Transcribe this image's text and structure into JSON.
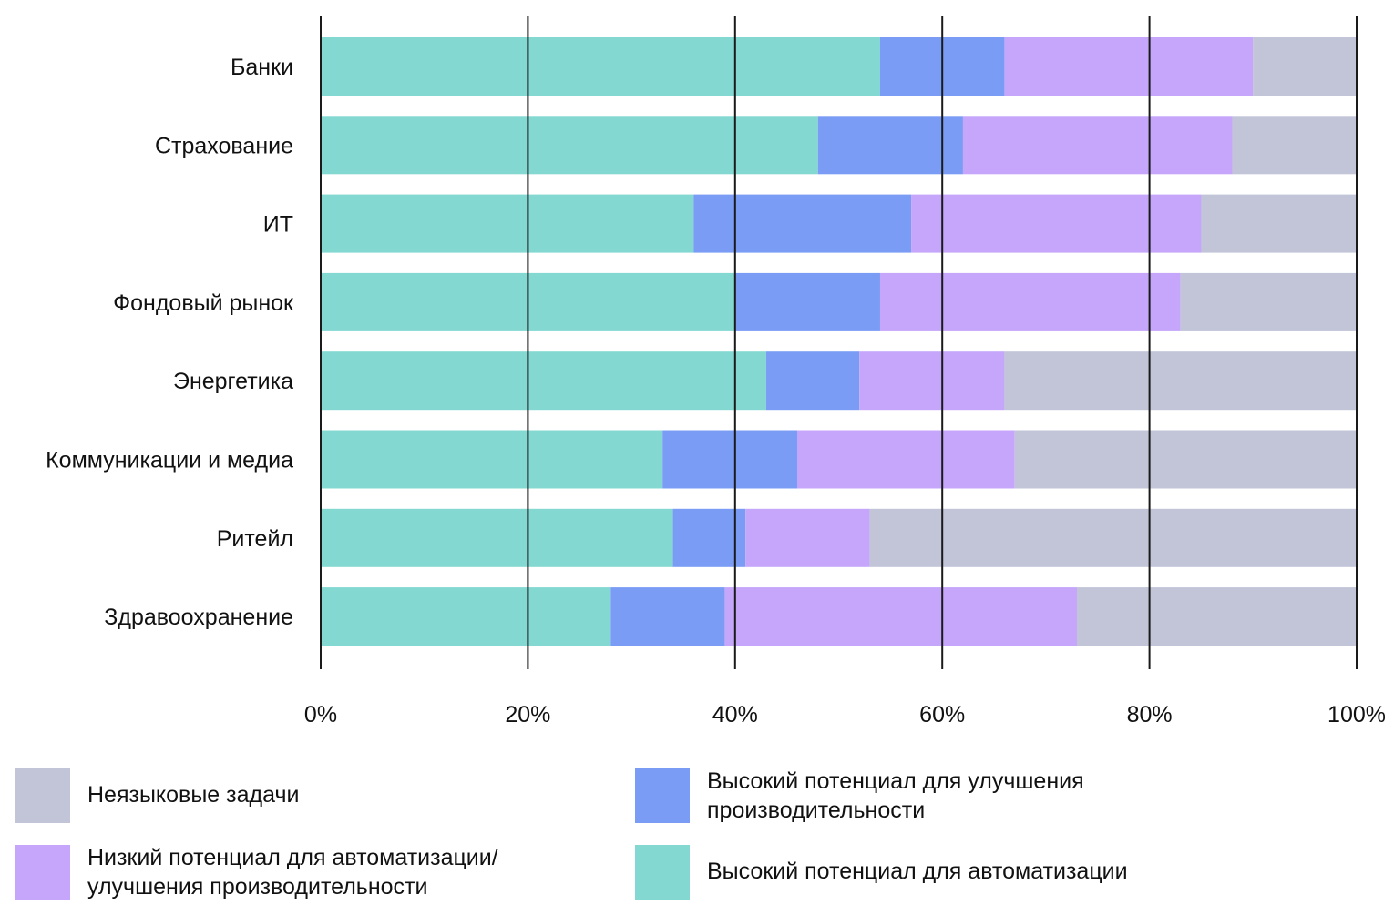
{
  "chart_data": {
    "type": "bar",
    "orientation": "horizontal",
    "stacked": true,
    "categories": [
      "Банки",
      "Страхование",
      "ИТ",
      "Фондовый рынок",
      "Энергетика",
      "Коммуникации и медиа",
      "Ритейл",
      "Здравоохранение"
    ],
    "series": [
      {
        "name": "Высокий потенциал для автоматизации",
        "color": "#83d8d1",
        "values": [
          54,
          48,
          36,
          40,
          43,
          33,
          34,
          28
        ]
      },
      {
        "name": "Высокий потенциал для улучшения\nпроизводительности",
        "color": "#7a9cf4",
        "values": [
          12,
          14,
          21,
          14,
          9,
          13,
          7,
          11
        ]
      },
      {
        "name": "Низкий потенциал для автоматизации/\nулучшения производительности",
        "color": "#c5a6fb",
        "values": [
          24,
          26,
          28,
          29,
          14,
          21,
          12,
          34
        ]
      },
      {
        "name": "Неязыковые задачи",
        "color": "#c1c5d7",
        "values": [
          10,
          12,
          15,
          17,
          34,
          33,
          47,
          27
        ]
      }
    ],
    "xlim": [
      0,
      100
    ],
    "x_ticks": [
      "0%",
      "20%",
      "40%",
      "60%",
      "80%",
      "100%"
    ],
    "x_tick_values": [
      0,
      20,
      40,
      60,
      80,
      100
    ],
    "grid": true,
    "legend": {
      "placement": "bottom",
      "order": [
        3,
        1,
        2,
        0
      ]
    }
  }
}
